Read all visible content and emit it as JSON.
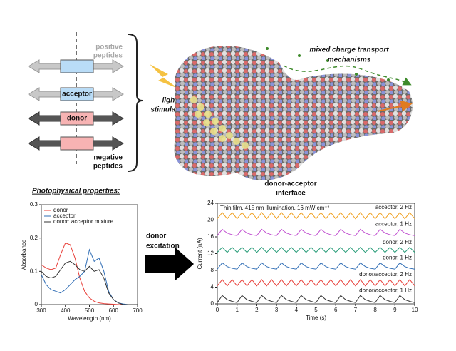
{
  "diagram": {
    "peptide_labels": {
      "positive": [
        "positive",
        "peptides"
      ],
      "acceptor": "acceptor",
      "donor": "donor",
      "negative": [
        "negative",
        "peptides"
      ]
    },
    "light": [
      "light",
      "stimulation"
    ],
    "transport": [
      "mixed charge transport",
      "mechanisms"
    ],
    "interface": [
      "donor-acceptor",
      "interface"
    ],
    "section_title": "Photophysical properties:",
    "excitation": [
      "donor",
      "excitation"
    ]
  },
  "chart_data": [
    {
      "type": "line",
      "xlabel": "Wavelength (nm)",
      "ylabel": "Absorbance",
      "x": [
        300,
        320,
        340,
        360,
        380,
        400,
        420,
        440,
        460,
        480,
        500,
        520,
        540,
        560,
        580,
        600,
        620,
        640,
        660,
        680,
        700
      ],
      "series": [
        {
          "name": "donor",
          "color": "#e8403a",
          "values": [
            0.12,
            0.11,
            0.105,
            0.11,
            0.15,
            0.185,
            0.18,
            0.14,
            0.08,
            0.04,
            0.02,
            0.01,
            0.005,
            0.003,
            0.002,
            0.001,
            0,
            0,
            0,
            0,
            0
          ]
        },
        {
          "name": "acceptor",
          "color": "#2f6db5",
          "values": [
            0.09,
            0.06,
            0.045,
            0.04,
            0.035,
            0.045,
            0.06,
            0.075,
            0.085,
            0.1,
            0.165,
            0.13,
            0.14,
            0.1,
            0.04,
            0.015,
            0.005,
            0.002,
            0,
            0,
            0
          ]
        },
        {
          "name": "donor: acceptor mixture",
          "color": "#333333",
          "values": [
            0.1,
            0.085,
            0.08,
            0.085,
            0.105,
            0.125,
            0.13,
            0.12,
            0.105,
            0.1,
            0.115,
            0.1,
            0.105,
            0.08,
            0.035,
            0.015,
            0.005,
            0,
            0,
            0,
            0
          ]
        }
      ],
      "xlim": [
        300,
        700
      ],
      "ylim": [
        0,
        0.3
      ],
      "xticks": [
        300,
        400,
        500,
        600,
        700
      ],
      "yticks": [
        0,
        0.1,
        0.2,
        0.3
      ],
      "legend": "upper left"
    },
    {
      "type": "line",
      "title": "Thin film, 415 nm illumination, 16 mW cm⁻²",
      "xlabel": "Time (s)",
      "ylabel": "Current (nA)",
      "x": [
        0,
        0.25,
        0.5,
        0.75,
        1,
        1.25,
        1.5,
        1.75,
        2,
        2.25,
        2.5,
        2.75,
        3,
        3.25,
        3.5,
        3.75,
        4,
        4.25,
        4.5,
        4.75,
        5,
        5.25,
        5.5,
        5.75,
        6,
        6.25,
        6.5,
        6.75,
        7,
        7.25,
        7.5,
        7.75,
        8,
        8.25,
        8.5,
        8.75,
        9,
        9.25,
        9.5,
        9.75,
        10
      ],
      "series": [
        {
          "name": "acceptor, 2 Hz",
          "color": "#f0a020",
          "values": [
            20.3,
            21.8,
            20.3,
            21.8,
            20.3,
            21.8,
            20.3,
            21.8,
            20.3,
            21.8,
            20.3,
            21.8,
            20.3,
            21.8,
            20.3,
            21.8,
            20.3,
            21.8,
            20.3,
            21.8,
            20.3,
            21.8,
            20.3,
            21.8,
            20.3,
            21.8,
            20.3,
            21.8,
            20.3,
            21.8,
            20.3,
            21.8,
            20.3,
            21.8,
            20.3,
            21.8,
            20.3,
            21.8,
            20.3,
            21.8,
            20.3
          ]
        },
        {
          "name": "acceptor, 1 Hz",
          "color": "#c050d0",
          "values": [
            16.3,
            17.8,
            16.9,
            16.5,
            16.3,
            17.8,
            16.9,
            16.5,
            16.3,
            17.8,
            16.9,
            16.5,
            16.3,
            17.8,
            16.9,
            16.5,
            16.3,
            17.8,
            16.9,
            16.5,
            16.3,
            17.8,
            16.9,
            16.5,
            16.3,
            17.8,
            16.9,
            16.5,
            16.3,
            17.8,
            16.9,
            16.5,
            16.3,
            17.8,
            16.9,
            16.5,
            16.3,
            17.8,
            16.9,
            16.5,
            16.3
          ]
        },
        {
          "name": "donor, 2 Hz",
          "color": "#2a9d7a",
          "values": [
            12.3,
            13.5,
            12.3,
            13.5,
            12.3,
            13.5,
            12.3,
            13.5,
            12.3,
            13.5,
            12.3,
            13.5,
            12.3,
            13.5,
            12.3,
            13.5,
            12.3,
            13.5,
            12.3,
            13.5,
            12.3,
            13.5,
            12.3,
            13.5,
            12.3,
            13.5,
            12.3,
            13.5,
            12.3,
            13.5,
            12.3,
            13.5,
            12.3,
            13.5,
            12.3,
            13.5,
            12.3,
            13.5,
            12.3,
            13.5,
            12.3
          ]
        },
        {
          "name": "donor, 1 Hz",
          "color": "#2f6db5",
          "values": [
            8.3,
            9.8,
            8.9,
            8.5,
            8.3,
            9.8,
            8.9,
            8.5,
            8.3,
            9.8,
            8.9,
            8.5,
            8.3,
            9.8,
            8.9,
            8.5,
            8.3,
            9.8,
            8.9,
            8.5,
            8.3,
            9.8,
            8.9,
            8.5,
            8.3,
            9.8,
            8.9,
            8.5,
            8.3,
            9.8,
            8.9,
            8.5,
            8.3,
            9.8,
            8.9,
            8.5,
            8.3,
            9.8,
            8.9,
            8.5,
            8.3
          ]
        },
        {
          "name": "donor/acceptor, 2 Hz",
          "color": "#e8403a",
          "values": [
            4.3,
            5.8,
            4.3,
            5.8,
            4.3,
            5.8,
            4.3,
            5.8,
            4.3,
            5.8,
            4.3,
            5.8,
            4.3,
            5.8,
            4.3,
            5.8,
            4.3,
            5.8,
            4.3,
            5.8,
            4.3,
            5.8,
            4.3,
            5.8,
            4.3,
            5.8,
            4.3,
            5.8,
            4.3,
            5.8,
            4.3,
            5.8,
            4.3,
            5.8,
            4.3,
            5.8,
            4.3,
            5.8,
            4.3,
            5.8,
            4.3
          ]
        },
        {
          "name": "donor/acceptor, 1 Hz",
          "color": "#333333",
          "values": [
            0.3,
            2.0,
            1.0,
            0.6,
            0.3,
            2.0,
            1.0,
            0.6,
            0.3,
            2.0,
            1.0,
            0.6,
            0.3,
            2.0,
            1.0,
            0.6,
            0.3,
            2.0,
            1.0,
            0.6,
            0.3,
            2.0,
            1.0,
            0.6,
            0.3,
            2.0,
            1.0,
            0.6,
            0.3,
            2.0,
            1.0,
            0.6,
            0.3,
            2.0,
            1.0,
            0.6,
            0.3,
            2.0,
            1.0,
            0.6,
            0.3
          ]
        }
      ],
      "xlim": [
        0,
        10
      ],
      "ylim": [
        0,
        24
      ],
      "xticks": [
        0,
        1,
        2,
        3,
        4,
        5,
        6,
        7,
        8,
        9,
        10
      ],
      "yticks": [
        0,
        4,
        8,
        12,
        16,
        20,
        24
      ],
      "legend": "inline"
    }
  ]
}
